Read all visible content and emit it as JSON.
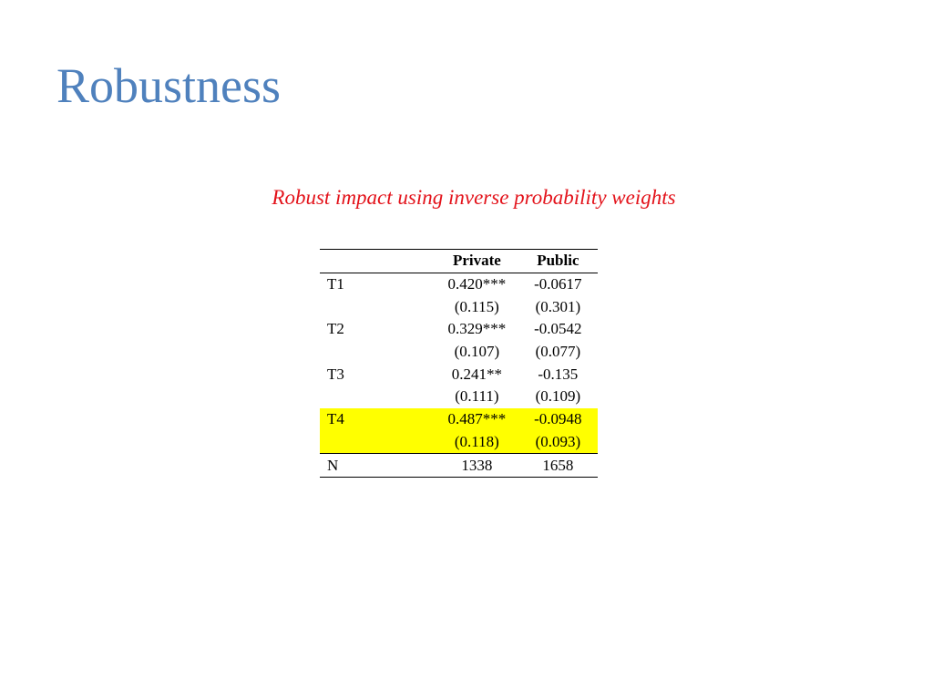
{
  "slide": {
    "title": "Robustness",
    "subtitle": "Robust impact using inverse probability weights"
  },
  "table": {
    "headers": [
      "",
      "Private",
      "Public"
    ],
    "rows": [
      {
        "label": "T1",
        "private": "0.420***",
        "public": "-0.0617",
        "private_se": "(0.115)",
        "public_se": "(0.301)"
      },
      {
        "label": "T2",
        "private": "0.329***",
        "public": "-0.0542",
        "private_se": "(0.107)",
        "public_se": "(0.077)"
      },
      {
        "label": "T3",
        "private": "0.241**",
        "public": "-0.135",
        "private_se": "(0.111)",
        "public_se": "(0.109)"
      },
      {
        "label": "T4",
        "private": "0.487***",
        "public": "-0.0948",
        "private_se": "(0.118)",
        "public_se": "(0.093)",
        "highlighted": true
      }
    ],
    "n_row": {
      "label": "N",
      "private": "1338",
      "public": "1658"
    },
    "highlight_color": "#ffff00"
  },
  "colors": {
    "title": "#4f81bd",
    "subtitle": "#e3131b"
  }
}
